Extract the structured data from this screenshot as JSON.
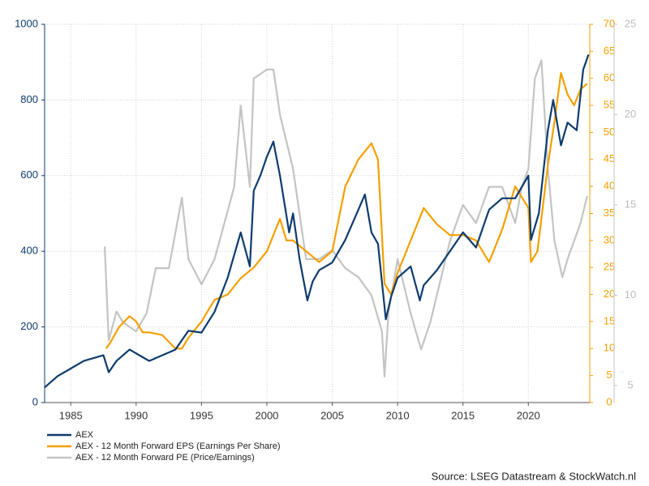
{
  "chart_data": {
    "type": "line",
    "source": "Source: LSEG Datastream & StockWatch.nl",
    "xlim": [
      1983,
      2024.7
    ],
    "xticks": [
      1985,
      1990,
      1995,
      2000,
      2005,
      2010,
      2015,
      2020
    ],
    "ylim": [
      0,
      1000
    ],
    "yticks": [
      0,
      200,
      400,
      600,
      800,
      1000
    ],
    "y2lim": [
      0,
      70
    ],
    "y2ticks": [
      0,
      5,
      10,
      15,
      20,
      25,
      30,
      35,
      40,
      45,
      50,
      55,
      60,
      65,
      70
    ],
    "y3lim": [
      4.06,
      25
    ],
    "y3ticks": [
      5,
      10,
      15,
      20,
      25
    ],
    "grid": true,
    "legend": "bottom-left",
    "series": [
      {
        "name": "AEX",
        "color": "#0d3b6e",
        "axis": "y",
        "x": [
          1983,
          1984,
          1985,
          1986,
          1987.5,
          1987.9,
          1988.5,
          1989.5,
          1990.5,
          1991,
          1992,
          1993,
          1994,
          1995,
          1996,
          1997,
          1998,
          1998.7,
          1999,
          1999.5,
          2000,
          2000.5,
          2001,
          2001.7,
          2002,
          2002.5,
          2003.1,
          2003.5,
          2004,
          2005,
          2006,
          2007,
          2007.5,
          2008,
          2008.5,
          2009.1,
          2009.5,
          2010,
          2011,
          2011.7,
          2012,
          2013,
          2014,
          2015,
          2016,
          2017,
          2018,
          2019,
          2020,
          2020.2,
          2020.8,
          2021.5,
          2021.9,
          2022.5,
          2023,
          2023.7,
          2024.2,
          2024.6
        ],
        "values": [
          40,
          70,
          90,
          110,
          125,
          80,
          110,
          140,
          120,
          110,
          125,
          140,
          190,
          185,
          240,
          330,
          450,
          360,
          560,
          600,
          650,
          690,
          600,
          450,
          500,
          380,
          270,
          320,
          350,
          370,
          430,
          510,
          550,
          450,
          420,
          220,
          280,
          330,
          360,
          270,
          310,
          350,
          400,
          450,
          410,
          510,
          540,
          540,
          600,
          430,
          500,
          720,
          800,
          680,
          740,
          720,
          880,
          920
        ]
      },
      {
        "name": "AEX - 12 Month Forward EPS (Earnings Per Share)",
        "color": "#f5a000",
        "axis": "y2",
        "x": [
          1987.7,
          1988,
          1988.7,
          1989.5,
          1990,
          1990.5,
          1991,
          1992,
          1993,
          1993.5,
          1994,
          1995,
          1996,
          1997,
          1998,
          1999,
          2000,
          2001,
          2001.5,
          2002,
          2003,
          2004,
          2005,
          2006,
          2007,
          2008,
          2008.5,
          2009,
          2009.5,
          2010,
          2011,
          2012,
          2013,
          2014,
          2015,
          2016,
          2017,
          2018,
          2019,
          2020,
          2020.2,
          2020.7,
          2021.5,
          2022,
          2022.5,
          2023,
          2023.5,
          2024,
          2024.5
        ],
        "values": [
          10,
          11,
          14,
          16,
          15,
          13,
          13,
          12.5,
          10,
          10,
          12,
          15,
          19,
          20,
          23,
          25,
          28,
          34,
          30,
          30,
          28,
          26,
          28,
          40,
          45,
          48,
          45,
          22,
          20,
          24,
          30,
          36,
          33,
          31,
          31,
          30,
          26,
          32,
          40,
          36,
          26,
          28,
          44,
          52,
          61,
          57,
          55,
          58,
          59
        ]
      },
      {
        "name": "AEX - 12 Month Forward PE (Price/Earnings)",
        "color": "#c4c4c4",
        "axis": "y3",
        "x": [
          1987.6,
          1987.9,
          1988.5,
          1989,
          1990,
          1990.8,
          1991.5,
          1992.5,
          1993.5,
          1994,
          1995,
          1996,
          1997.5,
          1998,
          1998.7,
          1999,
          2000,
          2000.5,
          2001,
          2002,
          2003,
          2004,
          2005,
          2006,
          2007,
          2008,
          2008.8,
          2009,
          2009.3,
          2010,
          2011,
          2011.8,
          2012.5,
          2013,
          2014,
          2015,
          2016,
          2017,
          2018,
          2019,
          2019.5,
          2020,
          2020.5,
          2021,
          2021.5,
          2022,
          2022.6,
          2023,
          2024,
          2024.5
        ],
        "values": [
          12.7,
          7.5,
          9.1,
          8.5,
          8,
          9,
          11.5,
          11.5,
          15.4,
          12,
          10.6,
          12,
          16,
          20.5,
          16,
          22,
          22.5,
          22.5,
          20,
          17,
          12,
          12,
          12.5,
          11.5,
          11,
          10,
          8,
          5.5,
          9,
          12,
          9,
          7,
          8.5,
          10,
          13,
          15,
          14,
          16,
          16,
          14,
          16,
          17,
          22,
          23,
          17,
          13,
          11,
          12,
          14,
          15.5
        ]
      }
    ]
  }
}
